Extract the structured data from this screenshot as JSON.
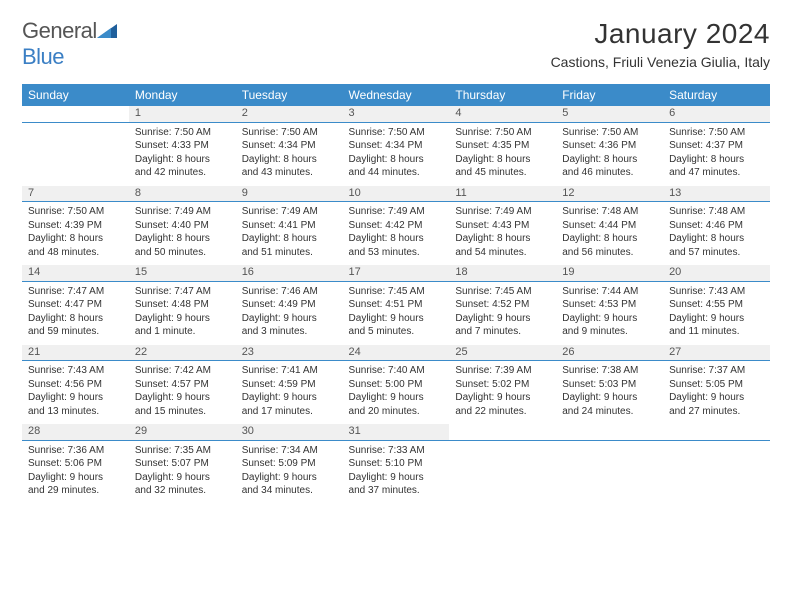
{
  "logo": {
    "word1": "General",
    "word2": "Blue"
  },
  "colors": {
    "header_bg": "#3b8bc9",
    "header_text": "#ffffff",
    "daynum_bg": "#f0f0f0",
    "rule": "#3b8bc9",
    "text": "#333333"
  },
  "title": "January 2024",
  "location": "Castions, Friuli Venezia Giulia, Italy",
  "weekdays": [
    "Sunday",
    "Monday",
    "Tuesday",
    "Wednesday",
    "Thursday",
    "Friday",
    "Saturday"
  ],
  "weeks": [
    {
      "nums": [
        "",
        "1",
        "2",
        "3",
        "4",
        "5",
        "6"
      ],
      "cells": [
        null,
        {
          "sunrise": "Sunrise: 7:50 AM",
          "sunset": "Sunset: 4:33 PM",
          "day1": "Daylight: 8 hours",
          "day2": "and 42 minutes."
        },
        {
          "sunrise": "Sunrise: 7:50 AM",
          "sunset": "Sunset: 4:34 PM",
          "day1": "Daylight: 8 hours",
          "day2": "and 43 minutes."
        },
        {
          "sunrise": "Sunrise: 7:50 AM",
          "sunset": "Sunset: 4:34 PM",
          "day1": "Daylight: 8 hours",
          "day2": "and 44 minutes."
        },
        {
          "sunrise": "Sunrise: 7:50 AM",
          "sunset": "Sunset: 4:35 PM",
          "day1": "Daylight: 8 hours",
          "day2": "and 45 minutes."
        },
        {
          "sunrise": "Sunrise: 7:50 AM",
          "sunset": "Sunset: 4:36 PM",
          "day1": "Daylight: 8 hours",
          "day2": "and 46 minutes."
        },
        {
          "sunrise": "Sunrise: 7:50 AM",
          "sunset": "Sunset: 4:37 PM",
          "day1": "Daylight: 8 hours",
          "day2": "and 47 minutes."
        }
      ]
    },
    {
      "nums": [
        "7",
        "8",
        "9",
        "10",
        "11",
        "12",
        "13"
      ],
      "cells": [
        {
          "sunrise": "Sunrise: 7:50 AM",
          "sunset": "Sunset: 4:39 PM",
          "day1": "Daylight: 8 hours",
          "day2": "and 48 minutes."
        },
        {
          "sunrise": "Sunrise: 7:49 AM",
          "sunset": "Sunset: 4:40 PM",
          "day1": "Daylight: 8 hours",
          "day2": "and 50 minutes."
        },
        {
          "sunrise": "Sunrise: 7:49 AM",
          "sunset": "Sunset: 4:41 PM",
          "day1": "Daylight: 8 hours",
          "day2": "and 51 minutes."
        },
        {
          "sunrise": "Sunrise: 7:49 AM",
          "sunset": "Sunset: 4:42 PM",
          "day1": "Daylight: 8 hours",
          "day2": "and 53 minutes."
        },
        {
          "sunrise": "Sunrise: 7:49 AM",
          "sunset": "Sunset: 4:43 PM",
          "day1": "Daylight: 8 hours",
          "day2": "and 54 minutes."
        },
        {
          "sunrise": "Sunrise: 7:48 AM",
          "sunset": "Sunset: 4:44 PM",
          "day1": "Daylight: 8 hours",
          "day2": "and 56 minutes."
        },
        {
          "sunrise": "Sunrise: 7:48 AM",
          "sunset": "Sunset: 4:46 PM",
          "day1": "Daylight: 8 hours",
          "day2": "and 57 minutes."
        }
      ]
    },
    {
      "nums": [
        "14",
        "15",
        "16",
        "17",
        "18",
        "19",
        "20"
      ],
      "cells": [
        {
          "sunrise": "Sunrise: 7:47 AM",
          "sunset": "Sunset: 4:47 PM",
          "day1": "Daylight: 8 hours",
          "day2": "and 59 minutes."
        },
        {
          "sunrise": "Sunrise: 7:47 AM",
          "sunset": "Sunset: 4:48 PM",
          "day1": "Daylight: 9 hours",
          "day2": "and 1 minute."
        },
        {
          "sunrise": "Sunrise: 7:46 AM",
          "sunset": "Sunset: 4:49 PM",
          "day1": "Daylight: 9 hours",
          "day2": "and 3 minutes."
        },
        {
          "sunrise": "Sunrise: 7:45 AM",
          "sunset": "Sunset: 4:51 PM",
          "day1": "Daylight: 9 hours",
          "day2": "and 5 minutes."
        },
        {
          "sunrise": "Sunrise: 7:45 AM",
          "sunset": "Sunset: 4:52 PM",
          "day1": "Daylight: 9 hours",
          "day2": "and 7 minutes."
        },
        {
          "sunrise": "Sunrise: 7:44 AM",
          "sunset": "Sunset: 4:53 PM",
          "day1": "Daylight: 9 hours",
          "day2": "and 9 minutes."
        },
        {
          "sunrise": "Sunrise: 7:43 AM",
          "sunset": "Sunset: 4:55 PM",
          "day1": "Daylight: 9 hours",
          "day2": "and 11 minutes."
        }
      ]
    },
    {
      "nums": [
        "21",
        "22",
        "23",
        "24",
        "25",
        "26",
        "27"
      ],
      "cells": [
        {
          "sunrise": "Sunrise: 7:43 AM",
          "sunset": "Sunset: 4:56 PM",
          "day1": "Daylight: 9 hours",
          "day2": "and 13 minutes."
        },
        {
          "sunrise": "Sunrise: 7:42 AM",
          "sunset": "Sunset: 4:57 PM",
          "day1": "Daylight: 9 hours",
          "day2": "and 15 minutes."
        },
        {
          "sunrise": "Sunrise: 7:41 AM",
          "sunset": "Sunset: 4:59 PM",
          "day1": "Daylight: 9 hours",
          "day2": "and 17 minutes."
        },
        {
          "sunrise": "Sunrise: 7:40 AM",
          "sunset": "Sunset: 5:00 PM",
          "day1": "Daylight: 9 hours",
          "day2": "and 20 minutes."
        },
        {
          "sunrise": "Sunrise: 7:39 AM",
          "sunset": "Sunset: 5:02 PM",
          "day1": "Daylight: 9 hours",
          "day2": "and 22 minutes."
        },
        {
          "sunrise": "Sunrise: 7:38 AM",
          "sunset": "Sunset: 5:03 PM",
          "day1": "Daylight: 9 hours",
          "day2": "and 24 minutes."
        },
        {
          "sunrise": "Sunrise: 7:37 AM",
          "sunset": "Sunset: 5:05 PM",
          "day1": "Daylight: 9 hours",
          "day2": "and 27 minutes."
        }
      ]
    },
    {
      "nums": [
        "28",
        "29",
        "30",
        "31",
        "",
        "",
        ""
      ],
      "cells": [
        {
          "sunrise": "Sunrise: 7:36 AM",
          "sunset": "Sunset: 5:06 PM",
          "day1": "Daylight: 9 hours",
          "day2": "and 29 minutes."
        },
        {
          "sunrise": "Sunrise: 7:35 AM",
          "sunset": "Sunset: 5:07 PM",
          "day1": "Daylight: 9 hours",
          "day2": "and 32 minutes."
        },
        {
          "sunrise": "Sunrise: 7:34 AM",
          "sunset": "Sunset: 5:09 PM",
          "day1": "Daylight: 9 hours",
          "day2": "and 34 minutes."
        },
        {
          "sunrise": "Sunrise: 7:33 AM",
          "sunset": "Sunset: 5:10 PM",
          "day1": "Daylight: 9 hours",
          "day2": "and 37 minutes."
        },
        null,
        null,
        null
      ]
    }
  ]
}
